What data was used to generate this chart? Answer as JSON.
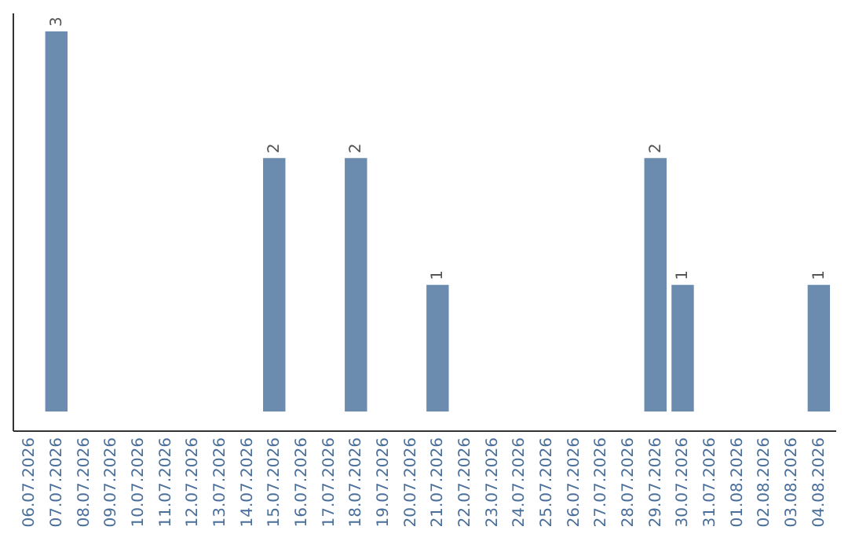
{
  "chart_data": {
    "type": "bar",
    "categories": [
      "06.07.2026",
      "07.07.2026",
      "08.07.2026",
      "09.07.2026",
      "10.07.2026",
      "11.07.2026",
      "12.07.2026",
      "13.07.2026",
      "14.07.2026",
      "15.07.2026",
      "16.07.2026",
      "17.07.2026",
      "18.07.2026",
      "19.07.2026",
      "20.07.2026",
      "21.07.2026",
      "22.07.2026",
      "23.07.2026",
      "24.07.2026",
      "25.07.2026",
      "26.07.2026",
      "27.07.2026",
      "28.07.2026",
      "29.07.2026",
      "30.07.2026",
      "31.07.2026",
      "01.08.2026",
      "02.08.2026",
      "03.08.2026",
      "04.08.2026"
    ],
    "values": [
      0,
      3,
      0,
      0,
      0,
      0,
      0,
      0,
      0,
      2,
      0,
      0,
      2,
      0,
      0,
      1,
      0,
      0,
      0,
      0,
      0,
      0,
      0,
      2,
      1,
      0,
      0,
      0,
      0,
      1
    ],
    "value_labels": [
      null,
      "3",
      null,
      null,
      null,
      null,
      null,
      null,
      null,
      "2",
      null,
      null,
      "2",
      null,
      null,
      "1",
      null,
      null,
      null,
      null,
      null,
      null,
      null,
      "2",
      "1",
      null,
      null,
      null,
      null,
      "1"
    ],
    "color": "#6b8cae",
    "grid": false
  }
}
